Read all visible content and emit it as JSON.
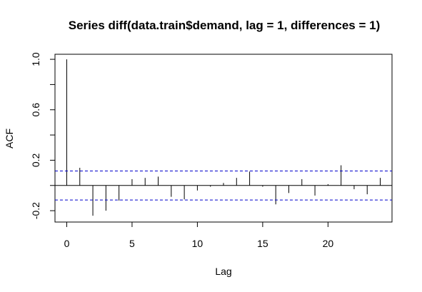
{
  "chart_data": {
    "type": "bar",
    "title": "Series  diff(data.train$demand, lag = 1, differences = 1)",
    "xlabel": "Lag",
    "ylabel": "ACF",
    "xlim": [
      -0.9,
      24.9
    ],
    "ylim": [
      -0.29,
      1.04
    ],
    "x_ticks": [
      0,
      5,
      10,
      15,
      20
    ],
    "x_tick_labels": [
      "0",
      "5",
      "10",
      "15",
      "20"
    ],
    "y_ticks": [
      -0.2,
      0.2,
      0.6,
      1.0
    ],
    "y_tick_labels": [
      "-0.2",
      "0.2",
      "0.6",
      "1.0"
    ],
    "y_minor_ticks": [
      0.0,
      0.4,
      0.8
    ],
    "lags": [
      0,
      1,
      2,
      3,
      4,
      5,
      6,
      7,
      8,
      9,
      10,
      11,
      12,
      13,
      14,
      15,
      16,
      17,
      18,
      19,
      20,
      21,
      22,
      23,
      24
    ],
    "acf": [
      1.0,
      0.14,
      -0.24,
      -0.2,
      -0.12,
      0.05,
      0.06,
      0.07,
      -0.09,
      -0.11,
      -0.04,
      -0.01,
      0.02,
      0.06,
      0.11,
      -0.01,
      -0.15,
      -0.06,
      0.05,
      -0.08,
      0.01,
      0.16,
      -0.03,
      -0.07,
      0.06
    ],
    "confidence_bound": 0.115,
    "confidence_color": "#0000cc",
    "grid": false
  }
}
